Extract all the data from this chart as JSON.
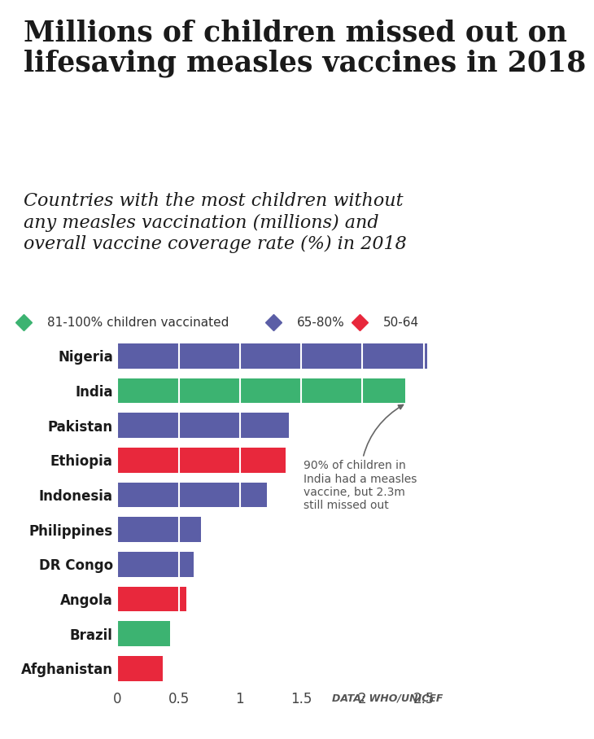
{
  "title": "Millions of children missed out on\nlifesaving measles vaccines in 2018",
  "subtitle": "Countries with the most children without\nany measles vaccination (millions) and\noverall vaccine coverage rate (%) in 2018",
  "categories": [
    "Nigeria",
    "India",
    "Pakistan",
    "Ethiopia",
    "Indonesia",
    "Philippines",
    "DR Congo",
    "Angola",
    "Brazil",
    "Afghanistan"
  ],
  "values": [
    2.53,
    2.35,
    1.4,
    1.37,
    1.22,
    0.68,
    0.62,
    0.56,
    0.43,
    0.37
  ],
  "colors": [
    "#5b5ea6",
    "#3cb371",
    "#5b5ea6",
    "#e8283c",
    "#5b5ea6",
    "#5b5ea6",
    "#5b5ea6",
    "#e8283c",
    "#3cb371",
    "#e8283c"
  ],
  "legend": [
    {
      "label": "81-100% children vaccinated",
      "color": "#3cb371"
    },
    {
      "label": "65-80%",
      "color": "#5b5ea6"
    },
    {
      "label": "50-64",
      "color": "#e8283c"
    }
  ],
  "xlim": [
    0,
    2.68
  ],
  "xticks": [
    0,
    0.5,
    1,
    1.5,
    2,
    2.5
  ],
  "xticklabels": [
    "0",
    "0.5",
    "1",
    "1.5",
    "2",
    "2.5"
  ],
  "annotation_text": "90% of children in\nIndia had a measles\nvaccine, but 2.3m\nstill missed out",
  "data_source": "DATA: WHO/UNICEF",
  "bg_color": "#ffffff",
  "title_color": "#1a1a1a",
  "bar_height": 0.72
}
